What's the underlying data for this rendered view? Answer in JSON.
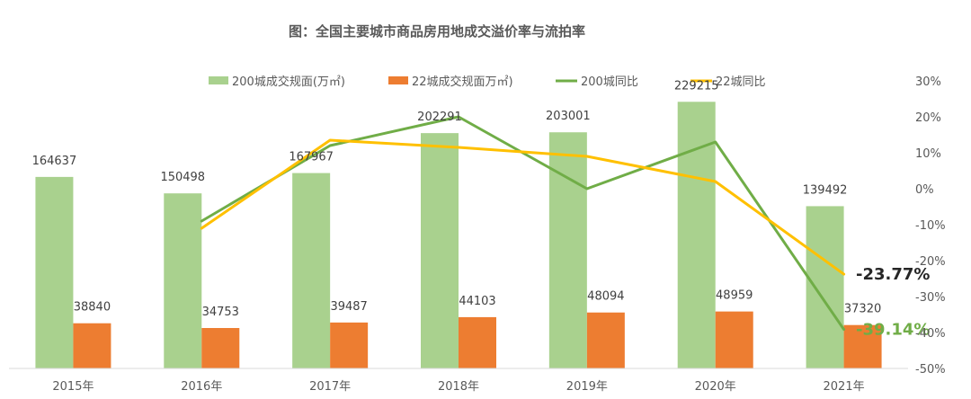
{
  "chart_data": {
    "type": "bar+line",
    "title": "图：全国主要城市商品房用地成交溢价率与流拍率",
    "categories": [
      "2015年",
      "2016年",
      "2017年",
      "2018年",
      "2019年",
      "2020年",
      "2021年"
    ],
    "bar_series": [
      {
        "name": "200城成交规面(万㎡)",
        "color": "#A9D18E",
        "values": [
          164637,
          150498,
          167967,
          202291,
          203001,
          229215,
          139492
        ]
      },
      {
        "name": "22城成交规面万㎡)",
        "color": "#ED7D31",
        "values": [
          38840,
          34753,
          39487,
          44103,
          48094,
          48959,
          37320
        ]
      }
    ],
    "line_series": [
      {
        "name": "200城同比",
        "color": "#70AD47",
        "values": [
          null,
          -9,
          12,
          20,
          0,
          13,
          -39.14
        ]
      },
      {
        "name": "22城同比",
        "color": "#FFC000",
        "values": [
          null,
          -11,
          13.5,
          11.5,
          9,
          2,
          -23.77
        ]
      }
    ],
    "end_labels": [
      {
        "series": "22城同比",
        "text": "-23.77%",
        "color": "#262626"
      },
      {
        "series": "200城同比",
        "text": "-39.14%",
        "color": "#70AD47"
      }
    ],
    "left_axis": {
      "min": 0,
      "max": 230000,
      "visible": false
    },
    "right_axis": {
      "min": -50,
      "max": 30,
      "ticks": [
        "30%",
        "20%",
        "10%",
        "0%",
        "-10%",
        "-20%",
        "-30%",
        "-40%",
        "-50%"
      ]
    },
    "legend": {
      "position": "top"
    },
    "grid": false
  }
}
